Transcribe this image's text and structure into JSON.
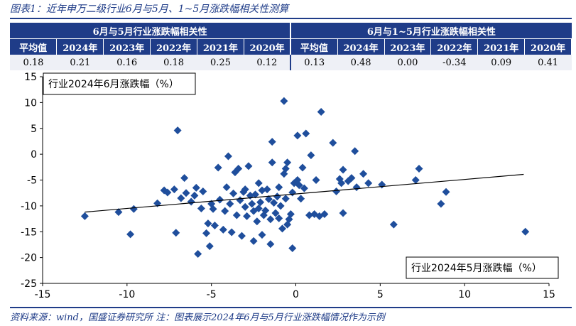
{
  "header": {
    "title": "图表1：近年申万二级行业6月与5月、1~5月涨跌幅相关性测算"
  },
  "table": {
    "group_left": "6月与5月行业涨跌幅相关性",
    "group_right": "6月与1~5月行业涨跌幅相关性",
    "columns": [
      "平均值",
      "2024年",
      "2023年",
      "2022年",
      "2021年",
      "2020年",
      "平均值",
      "2024年",
      "2023年",
      "2022年",
      "2021年",
      "2020年"
    ],
    "values": [
      "0.18",
      "0.21",
      "0.16",
      "0.18",
      "0.25",
      "0.12",
      "0.13",
      "0.48",
      "0.00",
      "-0.34",
      "0.09",
      "0.41"
    ]
  },
  "footer": {
    "source": "资料来源：wind，国盛证券研究所   注：图表展示2024年6月与5月行业涨跌幅情况作为示例"
  },
  "chart_data": {
    "type": "scatter",
    "ylabel": "行业2024年6月涨跌幅（%）",
    "xlabel": "行业2024年5月涨跌幅（%）",
    "xlim": [
      -15,
      15
    ],
    "ylim": [
      -25,
      15
    ],
    "xticks": [
      "-15",
      "-10",
      "-5",
      "0",
      "5",
      "10",
      "15"
    ],
    "yticks": [
      "15",
      "10",
      "5",
      "0",
      "-5",
      "-10",
      "-15",
      "-20",
      "-25"
    ],
    "marker_color": "#1f4e9c",
    "trendline": {
      "x": [
        -12.5,
        13.5
      ],
      "y": [
        -11.2,
        -3.9
      ]
    },
    "points": [
      [
        -12.5,
        -12.0
      ],
      [
        -10.5,
        -11.2
      ],
      [
        -9.8,
        -15.5
      ],
      [
        -9.6,
        -10.6
      ],
      [
        -8.2,
        -9.5
      ],
      [
        -7.8,
        -7.0
      ],
      [
        -7.6,
        -7.4
      ],
      [
        -7.2,
        -6.8
      ],
      [
        -7.0,
        4.6
      ],
      [
        -7.1,
        -15.2
      ],
      [
        -6.8,
        -8.5
      ],
      [
        -6.6,
        -4.6
      ],
      [
        -6.5,
        -7.5
      ],
      [
        -6.2,
        -9.2
      ],
      [
        -6.0,
        -8.0
      ],
      [
        -5.9,
        -6.5
      ],
      [
        -5.8,
        -19.3
      ],
      [
        -5.6,
        -10.5
      ],
      [
        -5.5,
        -7.2
      ],
      [
        -5.3,
        -15.3
      ],
      [
        -5.2,
        -13.4
      ],
      [
        -5.1,
        -17.8
      ],
      [
        -5.0,
        -9.6
      ],
      [
        -4.9,
        -10.6
      ],
      [
        -4.8,
        -13.8
      ],
      [
        -4.6,
        -2.6
      ],
      [
        -4.5,
        -8.8
      ],
      [
        -4.3,
        -14.6
      ],
      [
        -4.2,
        -11.0
      ],
      [
        -4.1,
        -6.4
      ],
      [
        -4.0,
        -0.4
      ],
      [
        -3.9,
        -9.6
      ],
      [
        -3.8,
        -15.1
      ],
      [
        -3.7,
        -7.6
      ],
      [
        -3.6,
        -3.5
      ],
      [
        -3.5,
        -11.8
      ],
      [
        -3.4,
        -2.8
      ],
      [
        -3.3,
        -8.9
      ],
      [
        -3.2,
        -15.8
      ],
      [
        -3.1,
        -7.3
      ],
      [
        -3.0,
        -10.2
      ],
      [
        -3.0,
        -6.8
      ],
      [
        -2.9,
        -12.0
      ],
      [
        -2.8,
        -2.3
      ],
      [
        -2.7,
        -8.0
      ],
      [
        -2.6,
        -9.6
      ],
      [
        -2.5,
        -16.8
      ],
      [
        -2.5,
        -11.0
      ],
      [
        -2.4,
        -7.8
      ],
      [
        -2.3,
        -13.0
      ],
      [
        -2.2,
        -5.6
      ],
      [
        -2.2,
        -10.5
      ],
      [
        -2.1,
        -9.3
      ],
      [
        -2.0,
        -7.0
      ],
      [
        -2.0,
        -15.6
      ],
      [
        -1.9,
        -11.8
      ],
      [
        -1.8,
        -10.9
      ],
      [
        -1.7,
        -6.8
      ],
      [
        -1.6,
        -8.7
      ],
      [
        -1.5,
        -17.4
      ],
      [
        -1.5,
        -12.6
      ],
      [
        -1.4,
        2.4
      ],
      [
        -1.4,
        -1.6
      ],
      [
        -1.3,
        -9.4
      ],
      [
        -1.2,
        -11.4
      ],
      [
        -1.1,
        -8.2
      ],
      [
        -1.0,
        -12.4
      ],
      [
        -1.0,
        -6.4
      ],
      [
        -0.9,
        -10.0
      ],
      [
        -0.8,
        -14.4
      ],
      [
        -0.7,
        -3.8
      ],
      [
        -0.7,
        10.3
      ],
      [
        -0.6,
        -8.6
      ],
      [
        -0.6,
        -2.8
      ],
      [
        -0.5,
        -1.6
      ],
      [
        -0.5,
        -13.6
      ],
      [
        -0.4,
        -12.6
      ],
      [
        -0.3,
        -11.6
      ],
      [
        -0.2,
        -7.4
      ],
      [
        -0.2,
        -18.2
      ],
      [
        -0.1,
        -5.6
      ],
      [
        0.1,
        -5.0
      ],
      [
        0.1,
        3.6
      ],
      [
        0.2,
        -6.0
      ],
      [
        0.3,
        -8.6
      ],
      [
        0.4,
        -2.6
      ],
      [
        0.5,
        -6.6
      ],
      [
        0.6,
        4.0
      ],
      [
        0.8,
        -11.8
      ],
      [
        0.9,
        -0.2
      ],
      [
        1.1,
        -11.6
      ],
      [
        1.2,
        -5.0
      ],
      [
        1.4,
        -12.0
      ],
      [
        1.5,
        8.2
      ],
      [
        1.7,
        -11.6
      ],
      [
        2.2,
        2.2
      ],
      [
        2.4,
        -7.2
      ],
      [
        2.6,
        -4.8
      ],
      [
        2.7,
        -5.6
      ],
      [
        2.8,
        -3.0
      ],
      [
        2.8,
        -11.4
      ],
      [
        3.1,
        -5.2
      ],
      [
        3.3,
        -4.6
      ],
      [
        3.5,
        0.6
      ],
      [
        3.6,
        -6.4
      ],
      [
        4.0,
        -3.8
      ],
      [
        4.3,
        -5.6
      ],
      [
        5.1,
        -5.9
      ],
      [
        5.8,
        -13.6
      ],
      [
        7.1,
        -5.0
      ],
      [
        7.3,
        -2.8
      ],
      [
        8.6,
        -9.6
      ],
      [
        8.9,
        -7.3
      ],
      [
        13.6,
        -15.0
      ]
    ]
  }
}
